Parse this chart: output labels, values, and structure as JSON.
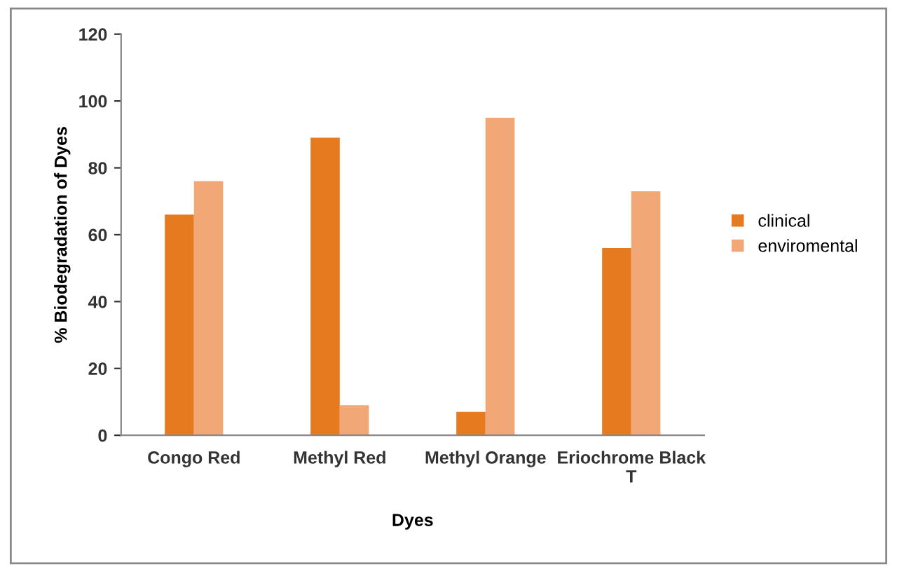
{
  "chart_data": {
    "type": "bar",
    "xlabel": "Dyes",
    "ylabel": "% Biodegradation of Dyes",
    "categories": [
      "Congo Red",
      "Methyl Red",
      "Methyl Orange",
      "Eriochrome Black T"
    ],
    "series": [
      {
        "name": "clinical",
        "color": "#e57a1e",
        "values": [
          66,
          89,
          7,
          56
        ]
      },
      {
        "name": "enviromental",
        "color": "#f2a777",
        "values": [
          76,
          9,
          95,
          73
        ]
      }
    ],
    "ylim": [
      0,
      120
    ],
    "yticks": [
      0,
      20,
      40,
      60,
      80,
      100,
      120
    ],
    "grid": false,
    "legend": "right"
  }
}
